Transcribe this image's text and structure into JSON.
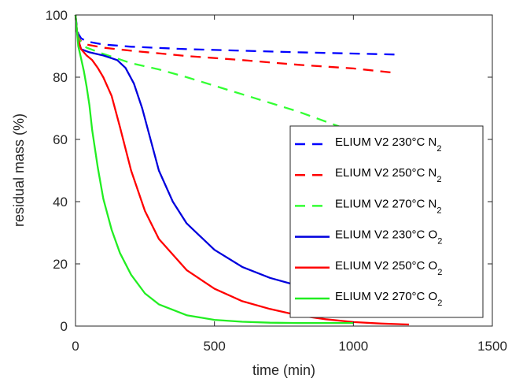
{
  "chart_data": {
    "type": "line",
    "title": "",
    "xlabel": "time (min)",
    "ylabel": "residual mass (%)",
    "xlim": [
      0,
      1500
    ],
    "ylim": [
      0,
      100
    ],
    "xticks": [
      0,
      500,
      1000,
      1500
    ],
    "yticks": [
      0,
      20,
      40,
      60,
      80,
      100
    ],
    "xtick_labels": [
      "0",
      "500",
      "1000",
      "1500"
    ],
    "ytick_labels": [
      "0",
      "20",
      "40",
      "60",
      "80",
      "100"
    ],
    "grid": false,
    "legend_position": "right",
    "series": [
      {
        "name": "ELIUM V2 230°C N",
        "subscript": "2",
        "color": "#0000ff",
        "dash": true,
        "x": [
          0,
          5,
          10,
          20,
          40,
          100,
          200,
          400,
          600,
          800,
          1000,
          1150
        ],
        "y": [
          100,
          96,
          94,
          92.5,
          91.5,
          90.5,
          89.8,
          89,
          88.5,
          88,
          87.6,
          87.3
        ]
      },
      {
        "name": "ELIUM V2 250°C N",
        "subscript": "2",
        "color": "#ff0000",
        "dash": true,
        "x": [
          0,
          5,
          10,
          20,
          40,
          100,
          200,
          400,
          600,
          800,
          1000,
          1140
        ],
        "y": [
          100,
          95,
          93,
          91.5,
          90.5,
          89.5,
          88.5,
          86.8,
          85.5,
          84,
          82.8,
          81.5
        ]
      },
      {
        "name": "ELIUM V2 270°C N",
        "subscript": "2",
        "color": "#33ff33",
        "dash": true,
        "x": [
          0,
          5,
          10,
          20,
          40,
          100,
          150,
          200,
          300,
          400,
          600,
          800,
          1000,
          1100
        ],
        "y": [
          100,
          95,
          93,
          91,
          89.5,
          87.5,
          86,
          84.5,
          82.5,
          80,
          74.5,
          69,
          62.5,
          60
        ]
      },
      {
        "name": "ELIUM V2 230°C O",
        "subscript": "2",
        "color": "#0000dd",
        "dash": false,
        "x": [
          0,
          5,
          10,
          20,
          50,
          100,
          150,
          180,
          210,
          240,
          270,
          300,
          350,
          400,
          500,
          600,
          700,
          800,
          900,
          1000,
          1100,
          1150
        ],
        "y": [
          100,
          95,
          92,
          89,
          88,
          87,
          85.5,
          83,
          78,
          70,
          60,
          50,
          40,
          33,
          24.5,
          19,
          15.5,
          13,
          11.5,
          10.5,
          10,
          9.8
        ]
      },
      {
        "name": "ELIUM V2 250°C O",
        "subscript": "2",
        "color": "#ff0000",
        "dash": false,
        "x": [
          0,
          5,
          10,
          20,
          40,
          60,
          80,
          100,
          130,
          160,
          200,
          250,
          300,
          400,
          500,
          600,
          700,
          800,
          900,
          1000,
          1100,
          1200
        ],
        "y": [
          100,
          95,
          92,
          89,
          87,
          85.5,
          83,
          80,
          74,
          64,
          50,
          37,
          28,
          18,
          12,
          8,
          5.5,
          3.5,
          2.2,
          1.3,
          0.8,
          0.5
        ]
      },
      {
        "name": "ELIUM V2 270°C O",
        "subscript": "2",
        "color": "#22ee22",
        "dash": false,
        "x": [
          0,
          5,
          10,
          20,
          30,
          40,
          50,
          60,
          80,
          100,
          130,
          160,
          200,
          250,
          300,
          400,
          500,
          600,
          700,
          800,
          900,
          1000
        ],
        "y": [
          100,
          95,
          90,
          86,
          82,
          77,
          71,
          63,
          51,
          41,
          31,
          23.5,
          16.5,
          10.5,
          7,
          3.5,
          2,
          1.4,
          1.1,
          1,
          1,
          1
        ]
      }
    ]
  }
}
